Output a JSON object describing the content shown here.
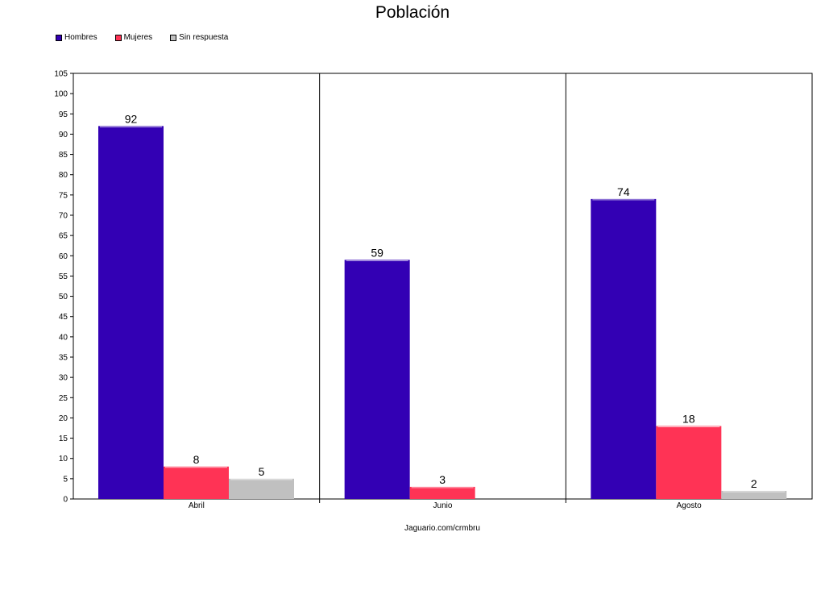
{
  "chart_data": {
    "type": "bar",
    "title": "Población",
    "xlabel": "Jaguario.com/crmbru",
    "ylabel": "",
    "categories": [
      "Abril",
      "Junio",
      "Agosto"
    ],
    "series": [
      {
        "name": "Hombres",
        "color": "#3300b4",
        "values": [
          92,
          59,
          74
        ]
      },
      {
        "name": "Mujeres",
        "color": "#ff3355",
        "values": [
          8,
          3,
          18
        ]
      },
      {
        "name": "Sin respuesta",
        "color": "#c0c0c0",
        "values": [
          5,
          null,
          2
        ]
      }
    ],
    "ylim": [
      0,
      105
    ],
    "ytick_step": 5,
    "grid": false,
    "legend_position": "top-left"
  }
}
